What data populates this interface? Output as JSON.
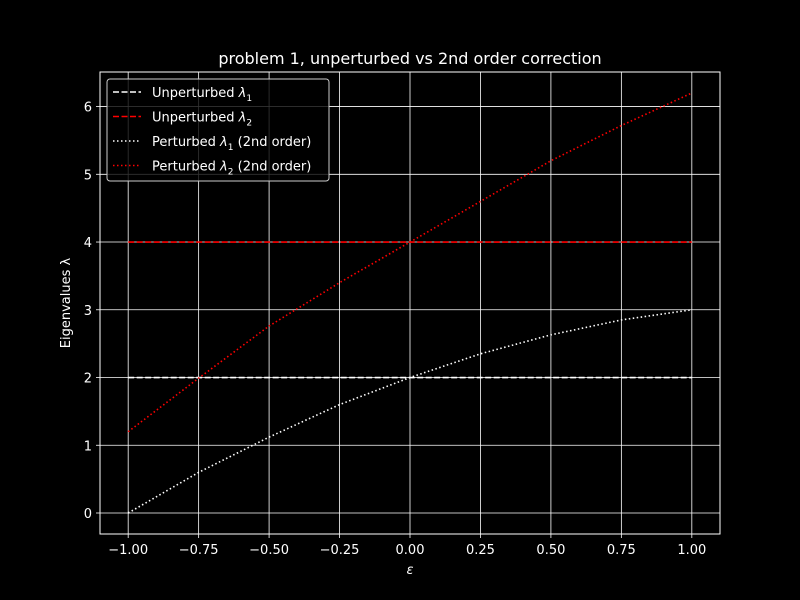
{
  "chart_data": {
    "type": "line",
    "title": "problem 1, unperturbed vs 2nd order correction",
    "xlabel": "ε",
    "ylabel": "Eigenvalues λ",
    "xlim": [
      -1.1,
      1.1
    ],
    "ylim": [
      -0.31,
      6.51
    ],
    "grid": true,
    "legend_position": "top-left",
    "xticks": [
      -1.0,
      -0.75,
      -0.5,
      -0.25,
      0.0,
      0.25,
      0.5,
      0.75,
      1.0
    ],
    "xtick_labels": [
      "−1.00",
      "−0.75",
      "−0.50",
      "−0.25",
      "0.00",
      "0.25",
      "0.50",
      "0.75",
      "1.00"
    ],
    "yticks": [
      0,
      1,
      2,
      3,
      4,
      5,
      6
    ],
    "ytick_labels": [
      "0",
      "1",
      "2",
      "3",
      "4",
      "5",
      "6"
    ],
    "series": [
      {
        "name": "Unperturbed λ1",
        "legend_base": "Unperturbed ",
        "legend_symbol": "λ",
        "legend_sub": "1",
        "legend_suffix": "",
        "color": "#ffffff",
        "style": "dashed",
        "x": [
          -1.0,
          -0.75,
          -0.5,
          -0.25,
          0.0,
          0.25,
          0.5,
          0.75,
          1.0
        ],
        "y": [
          2,
          2,
          2,
          2,
          2,
          2,
          2,
          2,
          2
        ]
      },
      {
        "name": "Unperturbed λ2",
        "legend_base": "Unperturbed ",
        "legend_symbol": "λ",
        "legend_sub": "2",
        "legend_suffix": "",
        "color": "#ff0000",
        "style": "dashed",
        "x": [
          -1.0,
          -0.75,
          -0.5,
          -0.25,
          0.0,
          0.25,
          0.5,
          0.75,
          1.0
        ],
        "y": [
          4,
          4,
          4,
          4,
          4,
          4,
          4,
          4,
          4
        ]
      },
      {
        "name": "Perturbed λ1 (2nd order)",
        "legend_base": "Perturbed ",
        "legend_symbol": "λ",
        "legend_sub": "1",
        "legend_suffix": " (2nd order)",
        "color": "#ffffff",
        "style": "dotted",
        "x": [
          -1.0,
          -0.75,
          -0.5,
          -0.25,
          0.0,
          0.25,
          0.5,
          0.75,
          1.0
        ],
        "y": [
          0.0,
          0.6,
          1.12,
          1.6,
          2.0,
          2.35,
          2.63,
          2.85,
          3.0
        ]
      },
      {
        "name": "Perturbed λ2 (2nd order)",
        "legend_base": "Perturbed ",
        "legend_symbol": "λ",
        "legend_sub": "2",
        "legend_suffix": " (2nd order)",
        "color": "#ff0000",
        "style": "dotted",
        "x": [
          -1.0,
          -0.75,
          -0.5,
          -0.25,
          0.0,
          0.25,
          0.5,
          0.75,
          1.0
        ],
        "y": [
          1.2,
          1.99,
          2.76,
          3.4,
          4.0,
          4.6,
          5.2,
          5.72,
          6.2
        ]
      }
    ]
  }
}
